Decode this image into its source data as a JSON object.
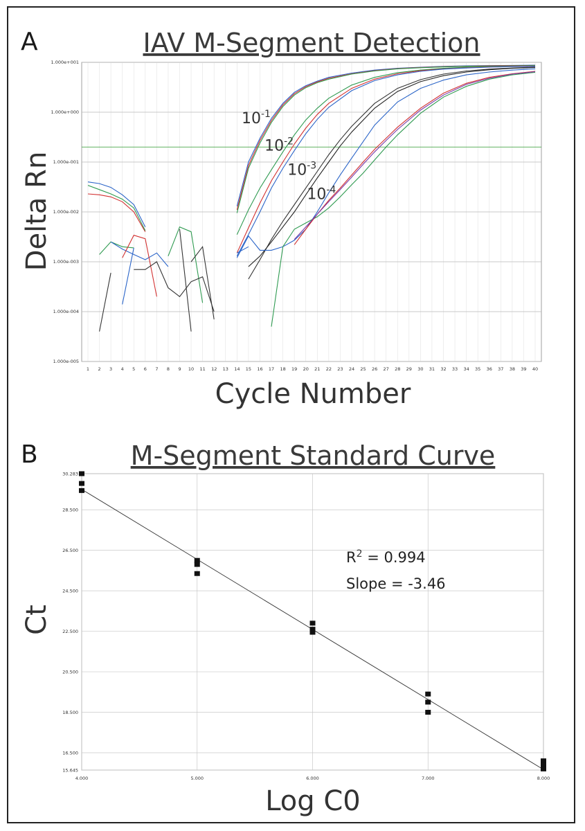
{
  "panels": {
    "a": {
      "letter": "A",
      "chart_data": {
        "type": "line",
        "title": "IAV M-Segment Detection",
        "xlabel": "Cycle Number",
        "ylabel": "Delta Rn",
        "yscale": "log",
        "xlim": [
          1,
          40
        ],
        "ylim": [
          1e-05,
          10
        ],
        "x_ticks": [
          "1",
          "2",
          "3",
          "4",
          "5",
          "6",
          "7",
          "8",
          "9",
          "10",
          "11",
          "12",
          "13",
          "14",
          "15",
          "16",
          "17",
          "18",
          "19",
          "20",
          "21",
          "22",
          "23",
          "24",
          "25",
          "26",
          "27",
          "28",
          "29",
          "30",
          "31",
          "32",
          "33",
          "34",
          "35",
          "36",
          "37",
          "38",
          "39",
          "40"
        ],
        "y_ticks": [
          {
            "value": 10,
            "label": "1.000e+001"
          },
          {
            "value": 1,
            "label": "1.000e+000"
          },
          {
            "value": 0.1,
            "label": "1.000e-001"
          },
          {
            "value": 0.01,
            "label": "1.000e-002"
          },
          {
            "value": 0.001,
            "label": "1.000e-003"
          },
          {
            "value": 0.0001,
            "label": "1.000e-004"
          },
          {
            "value": 1e-05,
            "label": "1.000e-005"
          }
        ],
        "threshold": 0.2,
        "dilution_labels": [
          {
            "base": "10",
            "exp": "-1",
            "x": 14.4,
            "y": 0.6
          },
          {
            "base": "10",
            "exp": "-2",
            "x": 16.4,
            "y": 0.17
          },
          {
            "base": "10",
            "exp": "-3",
            "x": 18.4,
            "y": 0.055
          },
          {
            "base": "10",
            "exp": "-4",
            "x": 20.1,
            "y": 0.018
          }
        ],
        "series": [
          {
            "name": "10^-1 rep1",
            "color": "#2a64c8",
            "x": [
              14,
              15,
              16,
              17,
              18,
              19,
              20,
              21,
              22,
              24,
              26,
              28,
              30,
              32,
              34,
              36,
              38,
              40
            ],
            "y": [
              0.013,
              0.1,
              0.3,
              0.75,
              1.5,
              2.5,
              3.4,
              4.2,
              5.0,
              6.1,
              7.0,
              7.6,
              8.0,
              8.3,
              8.5,
              8.6,
              8.7,
              8.8
            ]
          },
          {
            "name": "10^-1 rep2",
            "color": "#d23030",
            "x": [
              14,
              15,
              16,
              17,
              18,
              19,
              20,
              21,
              22,
              24,
              26,
              28,
              30,
              32,
              34,
              36,
              38,
              40
            ],
            "y": [
              0.011,
              0.085,
              0.27,
              0.68,
              1.4,
              2.35,
              3.25,
              4.05,
              4.8,
              5.9,
              6.8,
              7.5,
              7.9,
              8.2,
              8.4,
              8.5,
              8.6,
              8.7
            ]
          },
          {
            "name": "10^-1 rep3",
            "color": "#2e9a50",
            "x": [
              14,
              15,
              16,
              17,
              18,
              19,
              20,
              21,
              22,
              24,
              26,
              28,
              30,
              32,
              34,
              36,
              38,
              40
            ],
            "y": [
              0.0095,
              0.075,
              0.24,
              0.62,
              1.3,
              2.2,
              3.1,
              3.9,
              4.6,
              5.8,
              6.7,
              7.4,
              7.8,
              8.1,
              8.3,
              8.4,
              8.5,
              8.6
            ]
          },
          {
            "name": "10^-2 rep1",
            "color": "#2e9a50",
            "x": [
              14,
              15,
              16,
              17,
              18,
              19,
              20,
              21,
              22,
              24,
              26,
              28,
              30,
              32,
              34,
              36,
              38,
              40
            ],
            "y": [
              0.0035,
              0.011,
              0.03,
              0.07,
              0.16,
              0.35,
              0.7,
              1.2,
              1.9,
              3.5,
              5.0,
              6.2,
              7.0,
              7.6,
              8.0,
              8.2,
              8.4,
              8.5
            ]
          },
          {
            "name": "10^-2 rep2",
            "color": "#d23030",
            "x": [
              14,
              15,
              16,
              17,
              18,
              19,
              20,
              21,
              22,
              24,
              26,
              28,
              30,
              32,
              34,
              36,
              38,
              40
            ],
            "y": [
              0.0015,
              0.0048,
              0.015,
              0.042,
              0.1,
              0.23,
              0.48,
              0.9,
              1.5,
              3.0,
              4.6,
              5.9,
              6.8,
              7.4,
              7.8,
              8.1,
              8.3,
              8.4
            ]
          },
          {
            "name": "10^-2 rep3",
            "color": "#2a64c8",
            "x": [
              14,
              15,
              16,
              17,
              18,
              19,
              20,
              21,
              22,
              24,
              26,
              28,
              30,
              32,
              34,
              36,
              38,
              40
            ],
            "y": [
              0.0013,
              0.0035,
              0.01,
              0.03,
              0.075,
              0.17,
              0.37,
              0.72,
              1.25,
              2.7,
              4.3,
              5.6,
              6.6,
              7.3,
              7.7,
              8.0,
              8.2,
              8.3
            ]
          },
          {
            "name": "10^-3 rep1",
            "color": "#333333",
            "x": [
              15,
              16,
              17,
              18,
              19,
              20,
              21,
              22,
              23,
              24,
              26,
              28,
              30,
              32,
              34,
              36,
              38,
              40
            ],
            "y": [
              0.00045,
              0.0011,
              0.0028,
              0.0065,
              0.014,
              0.03,
              0.065,
              0.14,
              0.28,
              0.52,
              1.5,
              3.0,
              4.5,
              5.8,
              6.7,
              7.3,
              7.7,
              8.0
            ]
          },
          {
            "name": "10^-3 rep2",
            "color": "#222222",
            "x": [
              15,
              16,
              17,
              18,
              19,
              20,
              21,
              22,
              23,
              24,
              26,
              28,
              30,
              32,
              34,
              36,
              38,
              40
            ],
            "y": [
              0.0008,
              0.0013,
              0.0025,
              0.005,
              0.01,
              0.022,
              0.048,
              0.1,
              0.21,
              0.4,
              1.2,
              2.6,
              4.1,
              5.4,
              6.4,
              7.1,
              7.6,
              7.9
            ]
          },
          {
            "name": "10^-3 rep3",
            "color": "#2a64c8",
            "x": [
              14,
              15,
              16,
              17,
              18,
              19,
              20,
              21,
              22,
              23,
              24,
              26,
              28,
              30,
              32,
              34,
              36,
              38,
              40
            ],
            "y": [
              0.0012,
              0.0033,
              0.0017,
              0.0017,
              0.002,
              0.0027,
              0.0045,
              0.01,
              0.024,
              0.055,
              0.12,
              0.55,
              1.6,
              3.0,
              4.4,
              5.6,
              6.4,
              7.0,
              7.4
            ]
          },
          {
            "name": "10^-4 rep1",
            "color": "#2e9a50",
            "x": [
              17,
              18,
              19,
              20,
              21,
              22,
              23,
              24,
              25,
              26,
              27,
              28,
              30,
              32,
              34,
              36,
              38,
              40
            ],
            "y": [
              5e-05,
              0.002,
              0.0045,
              0.006,
              0.008,
              0.012,
              0.02,
              0.035,
              0.06,
              0.11,
              0.2,
              0.35,
              0.95,
              2.0,
              3.3,
              4.6,
              5.6,
              6.3
            ]
          },
          {
            "name": "10^-4 rep2",
            "color": "#d23030",
            "x": [
              19,
              20,
              21,
              22,
              23,
              24,
              25,
              26,
              27,
              28,
              30,
              32,
              34,
              36,
              38,
              40
            ],
            "y": [
              0.0022,
              0.0045,
              0.009,
              0.017,
              0.03,
              0.055,
              0.1,
              0.18,
              0.3,
              0.5,
              1.2,
              2.4,
              3.8,
              5.0,
              5.9,
              6.6
            ]
          },
          {
            "name": "10^-4 rep3",
            "color": "#7a3aa8",
            "x": [
              19,
              20,
              21,
              22,
              23,
              24,
              25,
              26,
              27,
              28,
              30,
              32,
              34,
              36,
              38,
              40
            ],
            "y": [
              0.0028,
              0.005,
              0.009,
              0.016,
              0.028,
              0.05,
              0.09,
              0.16,
              0.27,
              0.45,
              1.1,
              2.2,
              3.6,
              4.8,
              5.8,
              6.5
            ]
          },
          {
            "name": "bg 1",
            "color": "#2a64c8",
            "x": [
              1,
              2,
              3,
              4,
              5,
              6
            ],
            "y": [
              0.04,
              0.037,
              0.031,
              0.022,
              0.014,
              0.005
            ]
          },
          {
            "name": "bg 2",
            "color": "#d23030",
            "x": [
              1,
              2,
              3,
              4,
              5,
              6
            ],
            "y": [
              0.023,
              0.022,
              0.02,
              0.016,
              0.01,
              0.004
            ]
          },
          {
            "name": "bg 3",
            "color": "#2e9a50",
            "x": [
              1,
              2,
              3,
              4,
              5,
              6
            ],
            "y": [
              0.034,
              0.028,
              0.023,
              0.018,
              0.012,
              0.0042
            ]
          },
          {
            "name": "bg 4",
            "color": "#2e9a50",
            "x": [
              2,
              3,
              4,
              5
            ],
            "y": [
              0.0014,
              0.0025,
              0.002,
              0.0019
            ]
          },
          {
            "name": "bg 5",
            "color": "#2a64c8",
            "x": [
              3,
              4,
              5,
              6,
              7,
              8
            ],
            "y": [
              0.0025,
              0.0018,
              0.0014,
              0.0011,
              0.0015,
              0.0008
            ]
          },
          {
            "name": "bg 6",
            "color": "#d23030",
            "x": [
              4,
              5,
              6,
              7
            ],
            "y": [
              0.0012,
              0.0034,
              0.0029,
              0.0002
            ]
          },
          {
            "name": "bg 7",
            "color": "#333333",
            "x": [
              2,
              3
            ],
            "y": [
              4e-05,
              0.0006
            ]
          },
          {
            "name": "bg 8",
            "color": "#2a64c8",
            "x": [
              4,
              5
            ],
            "y": [
              0.00014,
              0.0019
            ]
          },
          {
            "name": "bg 9",
            "color": "#333333",
            "x": [
              5,
              6,
              7,
              8,
              9,
              10
            ],
            "y": [
              0.0007,
              0.0007,
              0.001,
              0.0003,
              0.0002,
              0.0004
            ]
          },
          {
            "name": "bg 10",
            "color": "#2e9a50",
            "x": [
              8,
              9,
              10,
              11
            ],
            "y": [
              0.0013,
              0.005,
              0.004,
              0.00015
            ]
          },
          {
            "name": "bg 11",
            "color": "#333333",
            "x": [
              9,
              10
            ],
            "y": [
              0.0045,
              4e-05
            ]
          },
          {
            "name": "bg 12",
            "color": "#333333",
            "x": [
              10,
              11,
              12
            ],
            "y": [
              0.001,
              0.002,
              7e-05
            ]
          },
          {
            "name": "bg 13",
            "color": "#333333",
            "x": [
              10,
              11,
              12
            ],
            "y": [
              0.0004,
              0.0005,
              0.0001
            ]
          },
          {
            "name": "bg 14",
            "color": "#2a64c8",
            "x": [
              14,
              15
            ],
            "y": [
              0.0015,
              0.002
            ]
          }
        ]
      }
    },
    "b": {
      "letter": "B",
      "chart_data": {
        "type": "scatter",
        "title": "M-Segment Standard Curve",
        "xlabel": "Log C0",
        "ylabel": "Ct",
        "xlim": [
          4.0,
          8.0
        ],
        "ylim": [
          15.645,
          30.283
        ],
        "x_ticks": [
          {
            "value": 4,
            "label": "4.000"
          },
          {
            "value": 5,
            "label": "5.000"
          },
          {
            "value": 6,
            "label": "6.000"
          },
          {
            "value": 7,
            "label": "7.000"
          },
          {
            "value": 8,
            "label": "8.000"
          }
        ],
        "y_ticks": [
          {
            "value": 30.283,
            "label": "30.283"
          },
          {
            "value": 28.5,
            "label": "28.500"
          },
          {
            "value": 26.5,
            "label": "26.500"
          },
          {
            "value": 24.5,
            "label": "24.500"
          },
          {
            "value": 22.5,
            "label": "22.500"
          },
          {
            "value": 20.5,
            "label": "20.500"
          },
          {
            "value": 18.5,
            "label": "18.500"
          },
          {
            "value": 16.5,
            "label": "16.500"
          },
          {
            "value": 15.645,
            "label": "15.645"
          }
        ],
        "points": [
          {
            "x": 4,
            "y": 30.283
          },
          {
            "x": 4,
            "y": 29.8
          },
          {
            "x": 4,
            "y": 29.45
          },
          {
            "x": 5,
            "y": 26.0
          },
          {
            "x": 5,
            "y": 25.8
          },
          {
            "x": 5,
            "y": 25.35
          },
          {
            "x": 6,
            "y": 22.9
          },
          {
            "x": 6,
            "y": 22.6
          },
          {
            "x": 6,
            "y": 22.45
          },
          {
            "x": 7,
            "y": 19.4
          },
          {
            "x": 7,
            "y": 19.0
          },
          {
            "x": 7,
            "y": 18.5
          },
          {
            "x": 8,
            "y": 16.1
          },
          {
            "x": 8,
            "y": 15.9
          },
          {
            "x": 8,
            "y": 15.7
          }
        ],
        "fit": {
          "slope": -3.46,
          "intercept": 43.35
        },
        "r2_label": "R",
        "r2_sup": "2",
        "r2_value": " = 0.994",
        "slope_text": "Slope = -3.46"
      }
    }
  }
}
